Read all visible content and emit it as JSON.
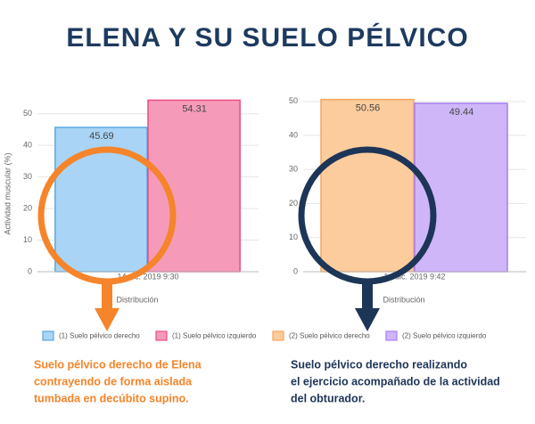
{
  "title": "ELENA Y SU SUELO PÉLVICO",
  "chart_data": [
    {
      "type": "bar",
      "categories": [
        "14 dic. 2019 9:30"
      ],
      "series": [
        {
          "name": "(1) Suelo pélvico derecho",
          "color": "#a9d4f5",
          "border": "#5aa9e0",
          "values": [
            45.69
          ]
        },
        {
          "name": "(1) Suelo pélvico izquierdo",
          "color": "#f59bb9",
          "border": "#ea4c86",
          "values": [
            54.31
          ]
        }
      ],
      "y_label": "Actividad muscular (%)",
      "x_label": "Distribución",
      "ylim": [
        0,
        55
      ],
      "yticks": [
        0,
        10,
        20,
        30,
        40,
        50
      ],
      "grid": true,
      "annotation": {
        "lines": [
          "Suelo pélvico derecho de Elena",
          "contrayendo de forma aislada",
          "tumbada en decúbito supino."
        ],
        "color": "#f5842a"
      }
    },
    {
      "type": "bar",
      "categories": [
        "14 dic. 2019 9:42"
      ],
      "series": [
        {
          "name": "(2) Suelo pélvico derecho",
          "color": "#fdcc9c",
          "border": "#f8a55c",
          "values": [
            50.56
          ]
        },
        {
          "name": "(2) Suelo pélvico izquierdo",
          "color": "#cfb6f9",
          "border": "#a77df0",
          "values": [
            49.44
          ]
        }
      ],
      "x_label": "Distribución",
      "ylim": [
        0,
        51
      ],
      "yticks": [
        0,
        10,
        20,
        30,
        40,
        50
      ],
      "grid": true,
      "annotation": {
        "lines": [
          "Suelo pélvico derecho realizando",
          "el ejercicio acompañado de la actividad",
          "del obturador."
        ],
        "color": "#1d3557"
      }
    }
  ]
}
